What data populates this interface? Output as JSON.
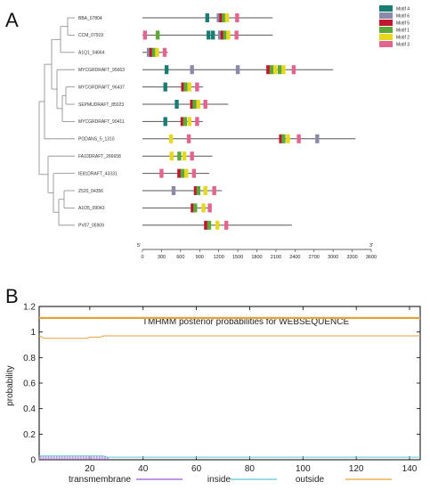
{
  "panels": {
    "a": "A",
    "b": "B"
  },
  "motif_colors": {
    "Motif 4": "#1a7d73",
    "Motif 6": "#8a8aa8",
    "Motif 5": "#c0172e",
    "Motif 1": "#5da83a",
    "Motif 2": "#e6d81e",
    "Motif 3": "#e3648c"
  },
  "chart_data": [
    {
      "type": "motif-map",
      "legend": [
        "Motif 4",
        "Motif 6",
        "Motif 5",
        "Motif 1",
        "Motif 2",
        "Motif 3"
      ],
      "axis": {
        "start_label": "5'",
        "end_label": "3'",
        "ticks": [
          0,
          300,
          600,
          900,
          1200,
          1500,
          1800,
          2100,
          2400,
          2700,
          3000,
          3300,
          3600
        ],
        "range": [
          0,
          3600
        ]
      },
      "highlight_color": "#d11b1b",
      "genes": [
        {
          "name": "BBA_07804",
          "length": 2050,
          "highlight": false,
          "motifs": [
            [
              "Motif 4",
              1020
            ],
            [
              "Motif 6",
              1200
            ],
            [
              "Motif 5",
              1240
            ],
            [
              "Motif 1",
              1280
            ],
            [
              "Motif 2",
              1330
            ],
            [
              "Motif 3",
              1490
            ]
          ]
        },
        {
          "name": "CCM_07919",
          "length": 2050,
          "highlight": false,
          "motifs": [
            [
              "Motif 3",
              40
            ],
            [
              "Motif 1",
              240
            ],
            [
              "Motif 4",
              1040
            ],
            [
              "Motif 4",
              1110
            ],
            [
              "Motif 6",
              1220
            ],
            [
              "Motif 5",
              1260
            ],
            [
              "Motif 1",
              1300
            ],
            [
              "Motif 2",
              1350
            ],
            [
              "Motif 3",
              1480
            ]
          ]
        },
        {
          "name": "A1Q1_04664",
          "length": 400,
          "highlight": true,
          "motifs": [
            [
              "Motif 6",
              100
            ],
            [
              "Motif 5",
              140
            ],
            [
              "Motif 1",
              180
            ],
            [
              "Motif 2",
              230
            ],
            [
              "Motif 3",
              350
            ]
          ]
        },
        {
          "name": "MYCGRDRAFT_95663",
          "length": 3000,
          "highlight": false,
          "motifs": [
            [
              "Motif 4",
              380
            ],
            [
              "Motif 6",
              780
            ],
            [
              "Motif 6",
              1500
            ],
            [
              "Motif 5",
              1980
            ],
            [
              "Motif 1",
              2030
            ],
            [
              "Motif 2",
              2090
            ],
            [
              "Motif 1",
              2160
            ],
            [
              "Motif 2",
              2220
            ],
            [
              "Motif 3",
              2380
            ]
          ]
        },
        {
          "name": "MYCGRDRAFT_96437",
          "length": 950,
          "highlight": false,
          "motifs": [
            [
              "Motif 4",
              360
            ],
            [
              "Motif 5",
              640
            ],
            [
              "Motif 1",
              680
            ],
            [
              "Motif 2",
              740
            ],
            [
              "Motif 3",
              860
            ]
          ]
        },
        {
          "name": "SEPMUDRAFT_85023",
          "length": 1350,
          "highlight": false,
          "motifs": [
            [
              "Motif 4",
              540
            ],
            [
              "Motif 5",
              780
            ],
            [
              "Motif 1",
              820
            ],
            [
              "Motif 2",
              880
            ],
            [
              "Motif 3",
              990
            ]
          ]
        },
        {
          "name": "MYCGRDRAFT_90411",
          "length": 950,
          "highlight": false,
          "motifs": [
            [
              "Motif 4",
              360
            ],
            [
              "Motif 5",
              630
            ],
            [
              "Motif 1",
              670
            ],
            [
              "Motif 2",
              740
            ],
            [
              "Motif 3",
              860
            ]
          ]
        },
        {
          "name": "PODANS_5_1310",
          "length": 3350,
          "highlight": false,
          "motifs": [
            [
              "Motif 2",
              450
            ],
            [
              "Motif 3",
              730
            ],
            [
              "Motif 5",
              2180
            ],
            [
              "Motif 1",
              2220
            ],
            [
              "Motif 2",
              2290
            ],
            [
              "Motif 3",
              2460
            ],
            [
              "Motif 6",
              2750
            ]
          ]
        },
        {
          "name": "FA10DRAFT_266658",
          "length": 1100,
          "highlight": false,
          "motifs": [
            [
              "Motif 2",
              460
            ],
            [
              "Motif 1",
              580
            ],
            [
              "Motif 2",
              660
            ],
            [
              "Motif 3",
              780
            ]
          ]
        },
        {
          "name": "IE81DRAFT_43331",
          "length": 1050,
          "highlight": false,
          "motifs": [
            [
              "Motif 3",
              300
            ],
            [
              "Motif 5",
              580
            ],
            [
              "Motif 1",
              630
            ],
            [
              "Motif 2",
              690
            ],
            [
              "Motif 3",
              810
            ]
          ]
        },
        {
          "name": "Z520_04356",
          "length": 1250,
          "highlight": false,
          "motifs": [
            [
              "Motif 6",
              490
            ],
            [
              "Motif 5",
              840
            ],
            [
              "Motif 1",
              880
            ],
            [
              "Motif 2",
              990
            ],
            [
              "Motif 3",
              1130
            ]
          ]
        },
        {
          "name": "A1O5_09043",
          "length": 1050,
          "highlight": false,
          "motifs": [
            [
              "Motif 5",
              790
            ],
            [
              "Motif 1",
              830
            ],
            [
              "Motif 2",
              960
            ],
            [
              "Motif 3",
              1060
            ]
          ]
        },
        {
          "name": "PV07_05909",
          "length": 2350,
          "highlight": false,
          "motifs": [
            [
              "Motif 5",
              1000
            ],
            [
              "Motif 1",
              1050
            ],
            [
              "Motif 2",
              1180
            ],
            [
              "Motif 3",
              1320
            ]
          ]
        }
      ]
    },
    {
      "type": "line",
      "title": "TMHMM posterior probabilities for WEBSEQUENCE",
      "xlabel": "",
      "ylabel": "probability",
      "xlim": [
        1,
        144
      ],
      "ylim": [
        0,
        1.2
      ],
      "xticks": [
        20,
        40,
        60,
        80,
        100,
        120,
        140
      ],
      "yticks": [
        0,
        0.2,
        0.4,
        0.6,
        0.8,
        1,
        1.2
      ],
      "x": [
        1,
        2,
        3,
        4,
        5,
        6,
        7,
        8,
        9,
        10,
        11,
        12,
        13,
        14,
        15,
        16,
        17,
        18,
        19,
        20,
        21,
        22,
        23,
        24,
        25,
        26,
        27,
        28,
        30,
        40,
        60,
        80,
        100,
        120,
        144
      ],
      "series": [
        {
          "name": "transmembrane",
          "color": "#9b59d0",
          "style": "impulses",
          "values": [
            0.02,
            0.03,
            0.03,
            0.03,
            0.03,
            0.03,
            0.03,
            0.03,
            0.03,
            0.03,
            0.03,
            0.03,
            0.03,
            0.03,
            0.03,
            0.03,
            0.03,
            0.03,
            0.03,
            0.03,
            0.03,
            0.03,
            0.03,
            0.03,
            0.03,
            0.03,
            0.02,
            0.0,
            0.0,
            0.0,
            0.0,
            0.0,
            0.0,
            0.0,
            0.0
          ]
        },
        {
          "name": "inside",
          "color": "#5ec8d8",
          "style": "line",
          "values": [
            0.03,
            0.03,
            0.03,
            0.03,
            0.03,
            0.03,
            0.03,
            0.03,
            0.03,
            0.03,
            0.03,
            0.03,
            0.03,
            0.03,
            0.03,
            0.03,
            0.03,
            0.03,
            0.03,
            0.03,
            0.03,
            0.03,
            0.03,
            0.03,
            0.03,
            0.02,
            0.02,
            0.02,
            0.02,
            0.02,
            0.02,
            0.02,
            0.02,
            0.02,
            0.02
          ]
        },
        {
          "name": "outside",
          "color": "#e3a23a",
          "style": "line",
          "values": [
            0.97,
            0.96,
            0.95,
            0.95,
            0.95,
            0.95,
            0.95,
            0.95,
            0.95,
            0.95,
            0.95,
            0.95,
            0.95,
            0.95,
            0.95,
            0.95,
            0.95,
            0.95,
            0.95,
            0.96,
            0.96,
            0.96,
            0.96,
            0.96,
            0.97,
            0.97,
            0.97,
            0.97,
            0.97,
            0.97,
            0.97,
            0.97,
            0.97,
            0.97,
            0.97
          ]
        }
      ],
      "reference_lines": [
        {
          "y": 1.11,
          "color": "#e3a23a"
        }
      ]
    }
  ]
}
